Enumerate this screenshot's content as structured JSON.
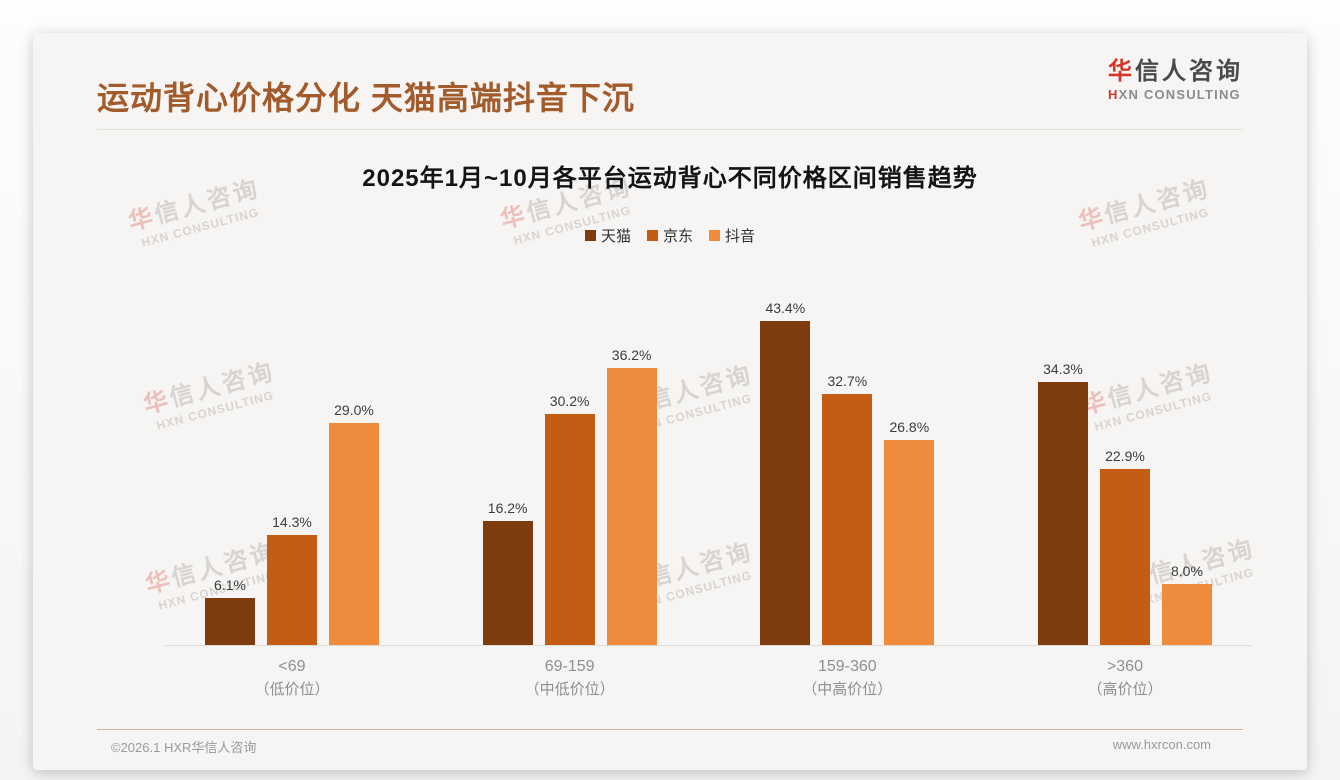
{
  "page": {
    "title": "运动背心价格分化 天猫高端抖音下沉",
    "footer_left": "©2026.1 HXR华信人咨询",
    "footer_right": "www.hxrcon.com"
  },
  "logo": {
    "cn_first": "华",
    "cn_rest": "信人咨询",
    "en_first": "H",
    "en_rest": "XN CONSULTING"
  },
  "watermark": {
    "cn_first": "华",
    "cn_rest": "信人咨询",
    "en": "HXN CONSULTING"
  },
  "chart_data": {
    "type": "bar",
    "title": "2025年1月~10月各平台运动背心不同价格区间销售趋势",
    "categories": [
      "<69",
      "69-159",
      "159-360",
      ">360"
    ],
    "category_sublabels": [
      "（低价位）",
      "（中低价位）",
      "（中高价位）",
      "（高价位）"
    ],
    "series": [
      {
        "name": "天猫",
        "color": "#7e3b0e",
        "values": [
          6.1,
          16.2,
          43.4,
          34.3
        ]
      },
      {
        "name": "京东",
        "color": "#c55c13",
        "values": [
          14.3,
          30.2,
          32.7,
          22.9
        ]
      },
      {
        "name": "抖音",
        "color": "#ef8b3c",
        "values": [
          29.0,
          36.2,
          26.8,
          8.0
        ]
      }
    ],
    "value_suffix": "%",
    "ylim": [
      0,
      45
    ],
    "legend_position": "top",
    "grid": false,
    "xlabel": "",
    "ylabel": ""
  }
}
